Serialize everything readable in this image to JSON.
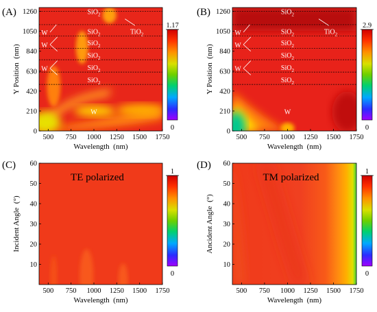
{
  "chart_data": [
    {
      "type": "heatmap",
      "panel_label": "(A)",
      "xlabel": "Wavelength (nm)",
      "ylabel": "Y Position (nm)",
      "xlim": [
        400,
        1750
      ],
      "ylim": [
        0,
        1300
      ],
      "xticks": [
        "500",
        "750",
        "1000",
        "1250",
        "1500",
        "1750"
      ],
      "yticks": [
        "0",
        "210",
        "420",
        "630",
        "840",
        "1050",
        "1260"
      ],
      "colorbar": {
        "max_label": "1.17",
        "min_label": "0",
        "range": [
          0,
          1.17
        ]
      },
      "layer_boundaries_nm": [
        490,
        620,
        750,
        870,
        1000,
        1120,
        1260
      ],
      "layer_labels": [
        {
          "text": "SiO",
          "sub": "2",
          "x": 1000,
          "y": 1260
        },
        {
          "text": "SiO",
          "sub": "2",
          "x": 1000,
          "y": 1050
        },
        {
          "text": "SiO",
          "sub": "2",
          "x": 1000,
          "y": 930
        },
        {
          "text": "SiO",
          "sub": "2",
          "x": 1000,
          "y": 800
        },
        {
          "text": "SiO",
          "sub": "2",
          "x": 1000,
          "y": 670
        },
        {
          "text": "SiO",
          "sub": "2",
          "x": 1000,
          "y": 540
        },
        {
          "text": "TiO",
          "sub": "2",
          "x": 1470,
          "y": 1050
        },
        {
          "text": "W",
          "sub": "",
          "x": 460,
          "y": 1040
        },
        {
          "text": "W",
          "sub": "",
          "x": 460,
          "y": 910
        },
        {
          "text": "W",
          "sub": "",
          "x": 460,
          "y": 660
        },
        {
          "text": "W",
          "sub": "",
          "x": 1000,
          "y": 205
        }
      ]
    },
    {
      "type": "heatmap",
      "panel_label": "(B)",
      "xlabel": "Wavelength (nm)",
      "ylabel": "Y Position (nm)",
      "xlim": [
        400,
        1750
      ],
      "ylim": [
        0,
        1300
      ],
      "xticks": [
        "500",
        "750",
        "1000",
        "1250",
        "1500",
        "1750"
      ],
      "yticks": [
        "0",
        "210",
        "420",
        "630",
        "840",
        "1050",
        "1260"
      ],
      "colorbar": {
        "max_label": "2.9",
        "min_label": "0",
        "range": [
          0,
          2.9
        ]
      },
      "layer_boundaries_nm": [
        490,
        620,
        750,
        870,
        1000,
        1120,
        1260
      ],
      "layer_labels": [
        {
          "text": "SiO",
          "sub": "2",
          "x": 1000,
          "y": 1260
        },
        {
          "text": "SiO",
          "sub": "2",
          "x": 1000,
          "y": 1050
        },
        {
          "text": "SiO",
          "sub": "2",
          "x": 1000,
          "y": 930
        },
        {
          "text": "SiO",
          "sub": "2",
          "x": 1000,
          "y": 800
        },
        {
          "text": "SiO",
          "sub": "2",
          "x": 1000,
          "y": 670
        },
        {
          "text": "SiO",
          "sub": "2",
          "x": 1000,
          "y": 540
        },
        {
          "text": "TiO",
          "sub": "2",
          "x": 1470,
          "y": 1050
        },
        {
          "text": "W",
          "sub": "",
          "x": 460,
          "y": 1040
        },
        {
          "text": "W",
          "sub": "",
          "x": 460,
          "y": 910
        },
        {
          "text": "W",
          "sub": "",
          "x": 460,
          "y": 660
        },
        {
          "text": "W",
          "sub": "",
          "x": 1000,
          "y": 205
        }
      ]
    },
    {
      "type": "heatmap",
      "panel_label": "(C)",
      "title": "TE polarized",
      "xlabel": "Wavelength (nm)",
      "ylabel": "Incident Angle (°)",
      "xlim": [
        400,
        1750
      ],
      "ylim": [
        0,
        60
      ],
      "xticks": [
        "500",
        "750",
        "1000",
        "1250",
        "1500",
        "1750"
      ],
      "yticks": [
        "10",
        "20",
        "30",
        "40",
        "50",
        "60"
      ],
      "colorbar": {
        "max_label": "1",
        "min_label": "0",
        "range": [
          0,
          1
        ]
      }
    },
    {
      "type": "heatmap",
      "panel_label": "(D)",
      "title": "TM polarized",
      "xlabel": "Wavelength (nm)",
      "ylabel": "Ancident Angle (°)",
      "xlim": [
        400,
        1750
      ],
      "ylim": [
        0,
        60
      ],
      "xticks": [
        "500",
        "750",
        "1000",
        "1250",
        "1500",
        "1750"
      ],
      "yticks": [
        "10",
        "20",
        "30",
        "40",
        "50",
        "60"
      ],
      "colorbar": {
        "max_label": "1",
        "min_label": "0",
        "range": [
          0,
          1
        ]
      }
    }
  ]
}
